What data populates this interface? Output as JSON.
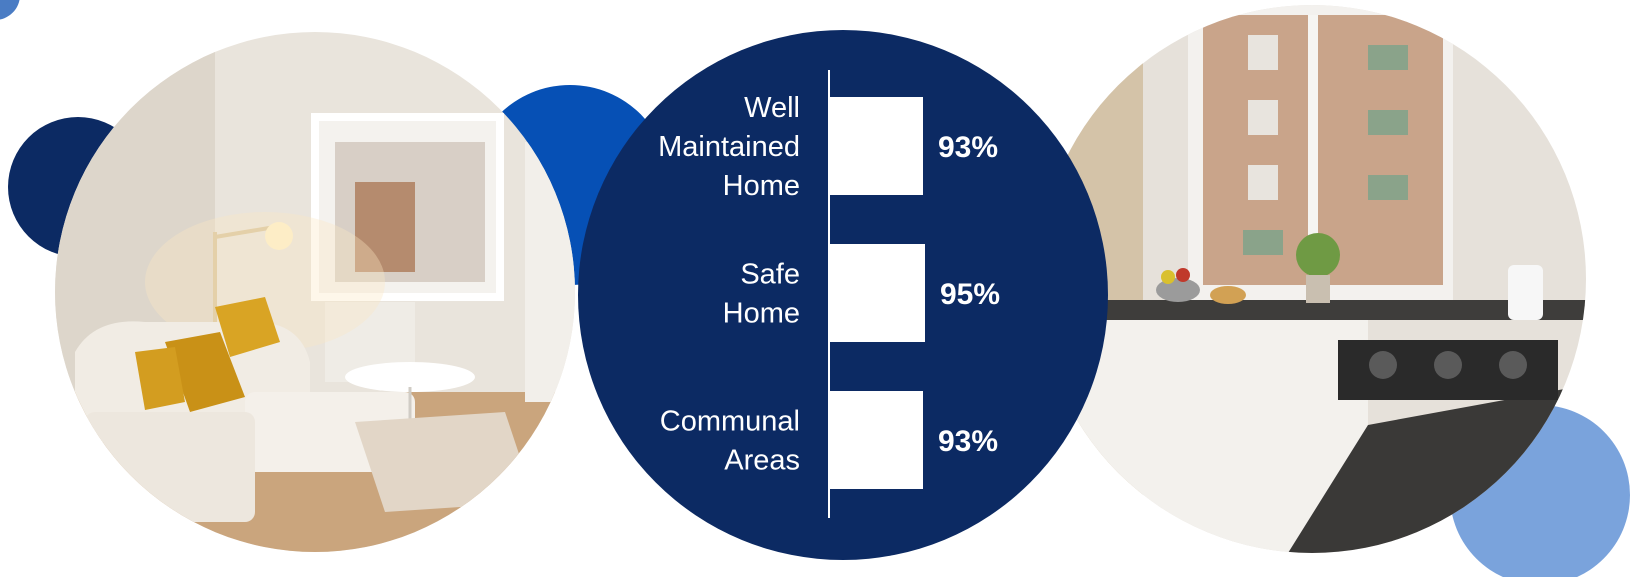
{
  "colors": {
    "navy": "#0c2a63",
    "royal_blue": "#0650b5",
    "light_blue": "#7aa3dc",
    "bar_fill": "#ffffff"
  },
  "images": {
    "left_photo": "living-room-photo",
    "right_photo": "kitchen-photo"
  },
  "chart_data": {
    "type": "bar",
    "orientation": "horizontal",
    "categories": [
      [
        "Well",
        "Maintained",
        "Home"
      ],
      [
        "Safe",
        "Home"
      ],
      [
        "Communal",
        "Areas"
      ]
    ],
    "values": [
      93,
      95,
      93
    ],
    "value_labels": [
      "93%",
      "95%",
      "93%"
    ],
    "xlim": [
      0,
      100
    ],
    "grid": false,
    "legend": "none"
  }
}
